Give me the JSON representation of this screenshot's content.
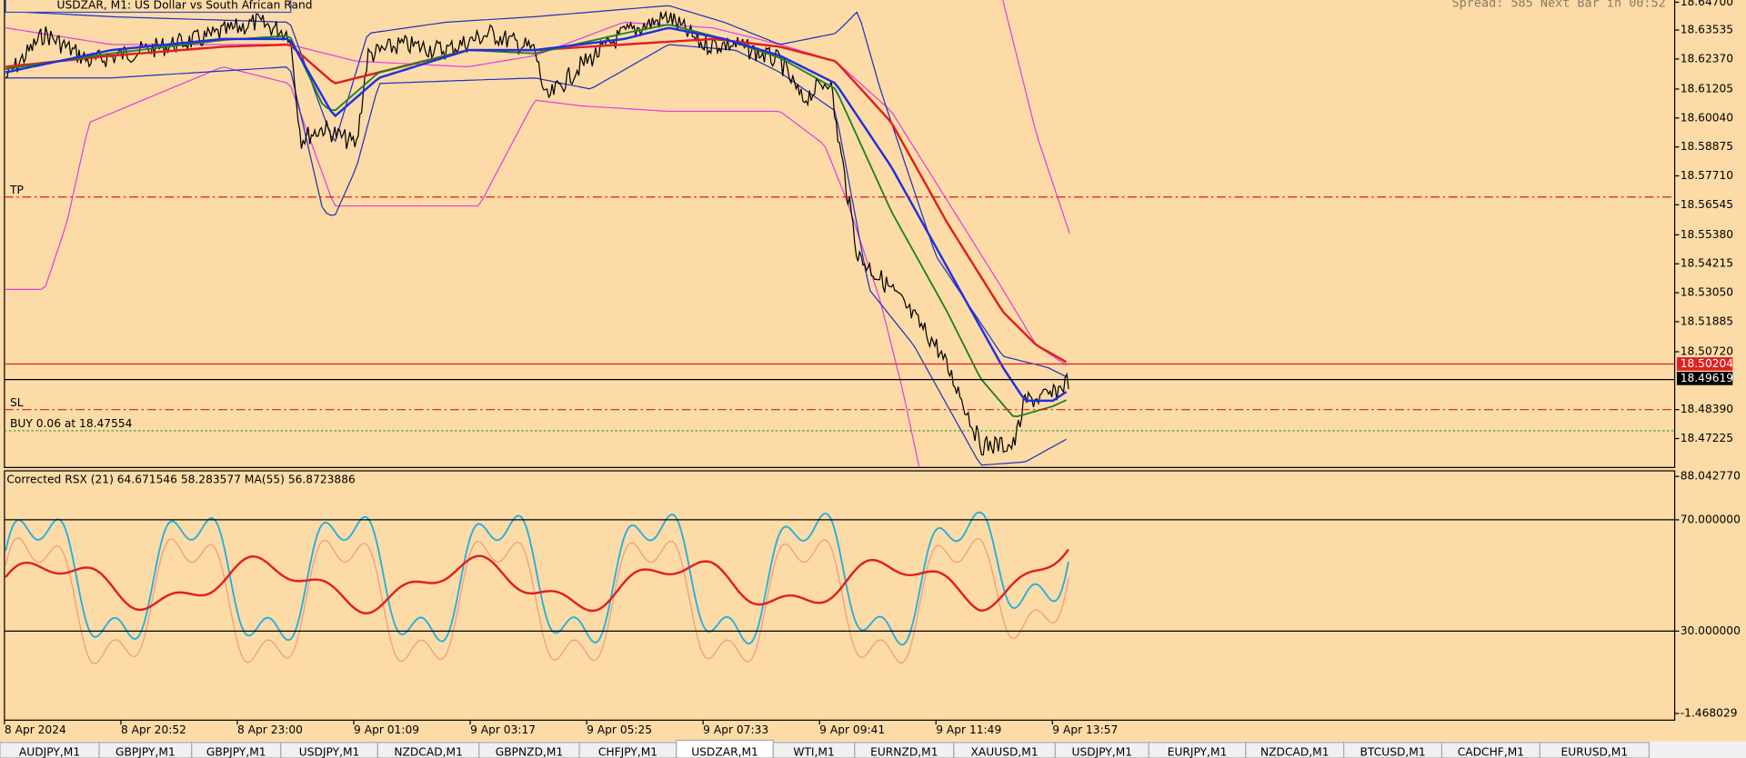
{
  "header": {
    "symbol": "USDZAR, M1:  US Dollar vs South African Rand",
    "status": "Spread: 585 Next Bar in 00:52"
  },
  "price_axis": [
    "18.64700",
    "18.63535",
    "18.62370",
    "18.61205",
    "18.60040",
    "18.58875",
    "18.57710",
    "18.56545",
    "18.55380",
    "18.54215",
    "18.53050",
    "18.51885",
    "18.50720",
    "18.48390",
    "18.47225"
  ],
  "price_tags": {
    "ask": "18.50204",
    "bid": "18.49619"
  },
  "chart_lines": {
    "tp": "TP",
    "sl": "SL",
    "order": "BUY 0.06 at 18.47554"
  },
  "indicator": {
    "label": "Corrected RSX (21) 64.671546 58.283577 MA(55) 56.8723886",
    "axis": [
      "88.042770",
      "70.000000",
      "30.000000",
      "-1.468029"
    ]
  },
  "time_axis": [
    "8 Apr 2024",
    "8 Apr 20:52",
    "8 Apr 23:00",
    "9 Apr 01:09",
    "9 Apr 03:17",
    "9 Apr 05:25",
    "9 Apr 07:33",
    "9 Apr 09:41",
    "9 Apr 11:49",
    "9 Apr 13:57"
  ],
  "tabs": [
    "AUDJPY,M1",
    "GBPJPY,M1",
    "GBPJPY,M1",
    "USDJPY,M1",
    "NZDCAD,M1",
    "GBPNZD,M1",
    "CHFJPY,M1",
    "USDZAR,M1",
    "WTI,M1",
    "EURNZD,M1",
    "XAUUSD,M1",
    "USDJPY,M1",
    "EURJPY,M1",
    "NZDCAD,M1",
    "BTCUSD,M1",
    "CADCHF,M1",
    "EURUSD,M1"
  ],
  "active_tab": "USDZAR,M1"
}
